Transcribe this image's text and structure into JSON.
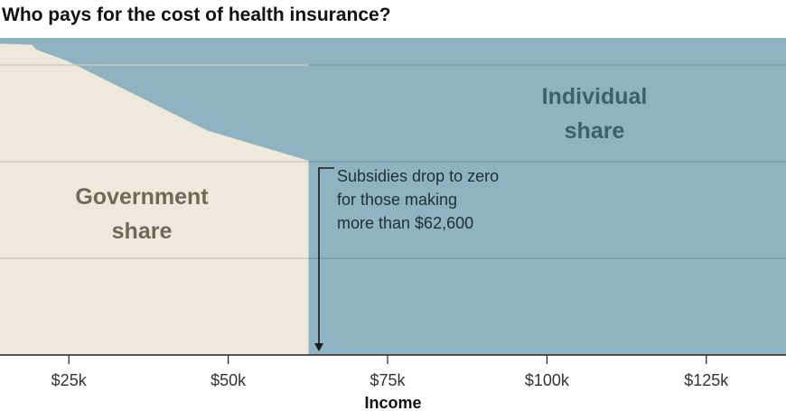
{
  "chart_data": {
    "type": "area",
    "title": "Who pays for the cost of health insurance?",
    "xlabel": "Income",
    "ylabel": "",
    "xlim": [
      14.2,
      137.5
    ],
    "ylim": [
      0,
      3.28
    ],
    "x_ticks": [
      25,
      50,
      75,
      100,
      125
    ],
    "x_tick_labels": [
      "$25k",
      "$50k",
      "$75k",
      "$100k",
      "$125k"
    ],
    "y_gridlines": [
      1,
      2,
      3
    ],
    "grid": true,
    "series": [
      {
        "name": "Government share",
        "label_lines": [
          "Government",
          "share"
        ],
        "color": "#efe9dc",
        "x": [
          14.2,
          19.2,
          19.9,
          24.8,
          46.8,
          62.6,
          62.6
        ],
        "y": [
          3.22,
          3.21,
          3.16,
          3.04,
          2.32,
          2.01,
          0
        ]
      },
      {
        "name": "Individual share",
        "label_lines": [
          "Individual",
          "share"
        ],
        "color": "#8fb3c1"
      }
    ],
    "annotation": {
      "x": 62.6,
      "lines": [
        "Subsidies drop to zero",
        "for those making",
        "more than $62,600"
      ]
    }
  }
}
